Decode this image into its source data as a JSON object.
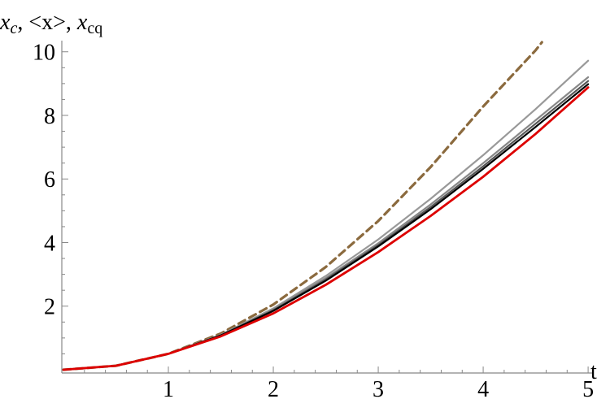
{
  "chart_data": {
    "type": "line",
    "ylabel_parts": [
      {
        "text": "x",
        "style": "italic"
      },
      {
        "text": "c",
        "style": "italic-sub"
      },
      {
        "text": ", <x>, ",
        "style": "normal"
      },
      {
        "text": "x",
        "style": "italic"
      },
      {
        "text": "cq",
        "style": "sub"
      }
    ],
    "xlabel": "t",
    "xlim": [
      0,
      5.1
    ],
    "ylim": [
      0,
      10.3
    ],
    "x_ticks": [
      1,
      2,
      3,
      4,
      5
    ],
    "y_ticks": [
      2,
      4,
      6,
      8,
      10
    ],
    "x_minor_step": 0.2,
    "y_minor_step": 0.5,
    "grid": false,
    "legend": "none",
    "series": [
      {
        "style": "dashed",
        "color": "#8B6A3E",
        "x": [
          0,
          0.5,
          1.0,
          1.5,
          2.0,
          2.5,
          3.0,
          3.5,
          4.0,
          4.5,
          4.56
        ],
        "y": [
          0,
          0.125,
          0.5,
          1.14,
          2.05,
          3.23,
          4.68,
          6.38,
          8.28,
          10.05,
          10.3
        ]
      },
      {
        "style": "solid",
        "color": "#999999",
        "x": [
          0,
          0.5,
          1.0,
          1.5,
          2.0,
          2.5,
          3.0,
          3.5,
          4.0,
          4.5,
          5.0
        ],
        "y": [
          0,
          0.125,
          0.5,
          1.1,
          1.93,
          2.95,
          4.1,
          5.38,
          6.75,
          8.2,
          9.72
        ]
      },
      {
        "style": "solid",
        "color": "#888888",
        "x": [
          0,
          0.5,
          1.0,
          1.5,
          2.0,
          2.5,
          3.0,
          3.5,
          4.0,
          4.5,
          5.0
        ],
        "y": [
          0,
          0.125,
          0.5,
          1.09,
          1.9,
          2.88,
          3.98,
          5.2,
          6.5,
          7.85,
          9.2
        ]
      },
      {
        "style": "solid",
        "color": "#555555",
        "x": [
          0,
          0.5,
          1.0,
          1.5,
          2.0,
          2.5,
          3.0,
          3.5,
          4.0,
          4.5,
          5.0
        ],
        "y": [
          0,
          0.125,
          0.5,
          1.08,
          1.87,
          2.84,
          3.92,
          5.12,
          6.4,
          7.74,
          9.08
        ]
      },
      {
        "style": "solid",
        "color": "#000000",
        "x": [
          0,
          0.5,
          1.0,
          1.5,
          2.0,
          2.5,
          3.0,
          3.5,
          4.0,
          4.5,
          5.0
        ],
        "y": [
          0,
          0.125,
          0.5,
          1.08,
          1.85,
          2.8,
          3.88,
          5.05,
          6.32,
          7.64,
          8.98
        ]
      },
      {
        "style": "solid",
        "color": "#DD0000",
        "x": [
          0,
          0.5,
          1.0,
          1.5,
          2.0,
          2.5,
          3.0,
          3.5,
          4.0,
          4.5,
          5.0
        ],
        "y": [
          0,
          0.125,
          0.5,
          1.05,
          1.77,
          2.67,
          3.7,
          4.84,
          6.07,
          7.42,
          8.88
        ]
      }
    ]
  }
}
